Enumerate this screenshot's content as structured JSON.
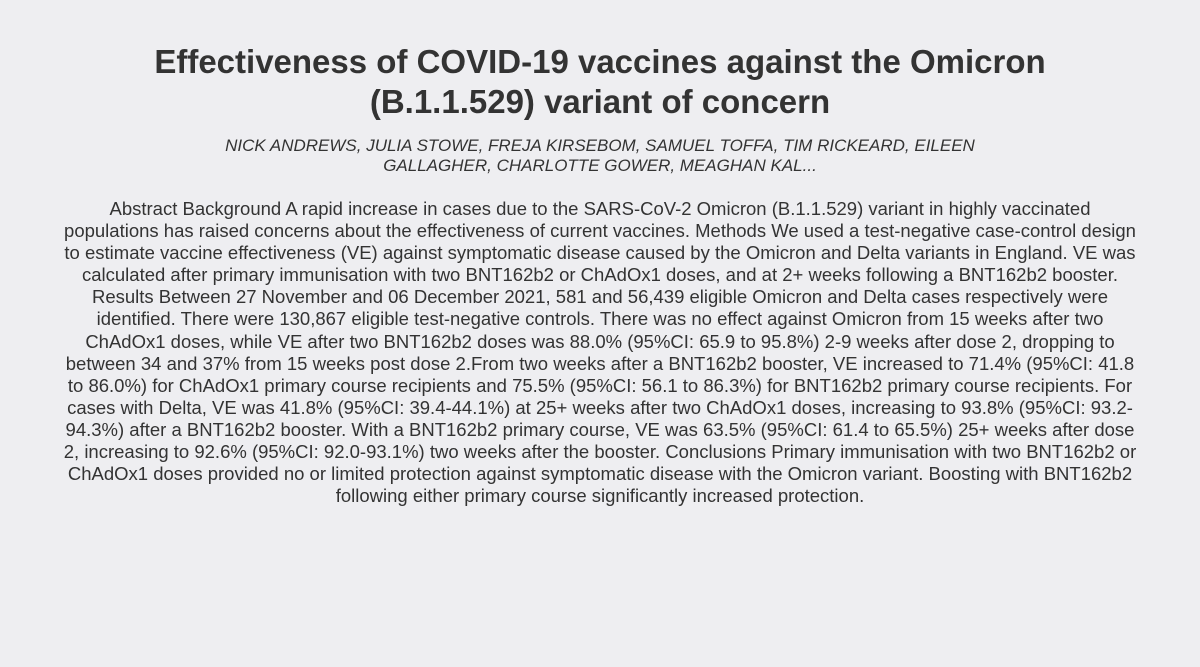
{
  "paper": {
    "title": "Effectiveness of COVID-19 vaccines against the Omicron (B.1.1.529) variant of concern",
    "authors": "NICK ANDREWS, JULIA STOWE, FREJA KIRSEBOM, SAMUEL TOFFA, TIM RICKEARD, EILEEN GALLAGHER, CHARLOTTE GOWER, MEAGHAN KAL...",
    "abstract": "Abstract Background A rapid increase in cases due to the SARS-CoV-2 Omicron (B.1.1.529) variant in highly vaccinated populations has raised concerns about the effectiveness of current vaccines. Methods We used a test-negative case-control design to estimate vaccine effectiveness (VE) against symptomatic disease caused by the Omicron and Delta variants in England. VE was calculated after primary immunisation with two BNT162b2 or ChAdOx1 doses, and at 2+ weeks following a BNT162b2 booster. Results Between 27 November and 06 December 2021, 581 and 56,439 eligible Omicron and Delta cases respectively were identified. There were 130,867 eligible test-negative controls. There was no effect against Omicron from 15 weeks after two ChAdOx1 doses, while VE after two BNT162b2 doses was 88.0% (95%CI: 65.9 to 95.8%) 2-9 weeks after dose 2, dropping to between 34 and 37% from 15 weeks post dose 2.From two weeks after a BNT162b2 booster, VE increased to 71.4% (95%CI: 41.8 to 86.0%) for ChAdOx1 primary course recipients and 75.5% (95%CI: 56.1 to 86.3%) for BNT162b2 primary course recipients. For cases with Delta, VE was 41.8% (95%CI: 39.4-44.1%) at 25+ weeks after two ChAdOx1 doses, increasing to 93.8% (95%CI: 93.2-94.3%) after a BNT162b2 booster. With a BNT162b2 primary course, VE was 63.5% (95%CI: 61.4 to 65.5%) 25+ weeks after dose 2, increasing to 92.6% (95%CI: 92.0-93.1%) two weeks after the booster. Conclusions Primary immunisation with two BNT162b2 or ChAdOx1 doses provided no or limited protection against symptomatic disease with the Omicron variant. Boosting with BNT162b2 following either primary course significantly increased protection."
  }
}
